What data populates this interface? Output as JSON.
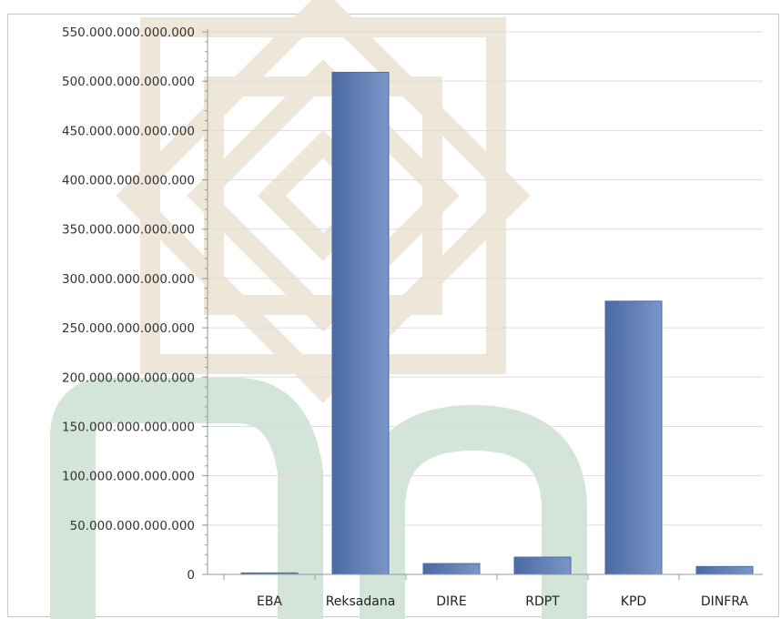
{
  "colors": {
    "bar_light": "#7a96c9",
    "bar_dark": "#4b6aa3",
    "grid": "#dcdcdc",
    "axis": "#999999",
    "watermark_gold": "#eee6d8",
    "watermark_green": "#d3e4d9"
  },
  "watermark": {
    "description_icon": "university-logo-watermark"
  },
  "chart_data": {
    "type": "bar",
    "title": "",
    "xlabel": "",
    "ylabel": "",
    "categories": [
      "EBA",
      "Reksadana",
      "DIRE",
      "RDPT",
      "KPD",
      "DINFRA"
    ],
    "values": [
      1500000000000,
      509000000000000,
      11000000000000,
      17500000000000,
      277000000000000,
      8000000000000
    ],
    "ylim": [
      0,
      550000000000000
    ],
    "ytick_values": [
      0,
      50000000000000,
      100000000000000,
      150000000000000,
      200000000000000,
      250000000000000,
      300000000000000,
      350000000000000,
      400000000000000,
      450000000000000,
      500000000000000,
      550000000000000
    ],
    "ytick_labels": [
      "0",
      "50.000.000.000.000",
      "100.000.000.000.000",
      "150.000.000.000.000",
      "200.000.000.000.000",
      "250.000.000.000.000",
      "300.000.000.000.000",
      "350.000.000.000.000",
      "400.000.000.000.000",
      "450.000.000.000.000",
      "500.000.000.000.000",
      "550.000.000.000.000"
    ],
    "grid": true,
    "legend": "none"
  }
}
